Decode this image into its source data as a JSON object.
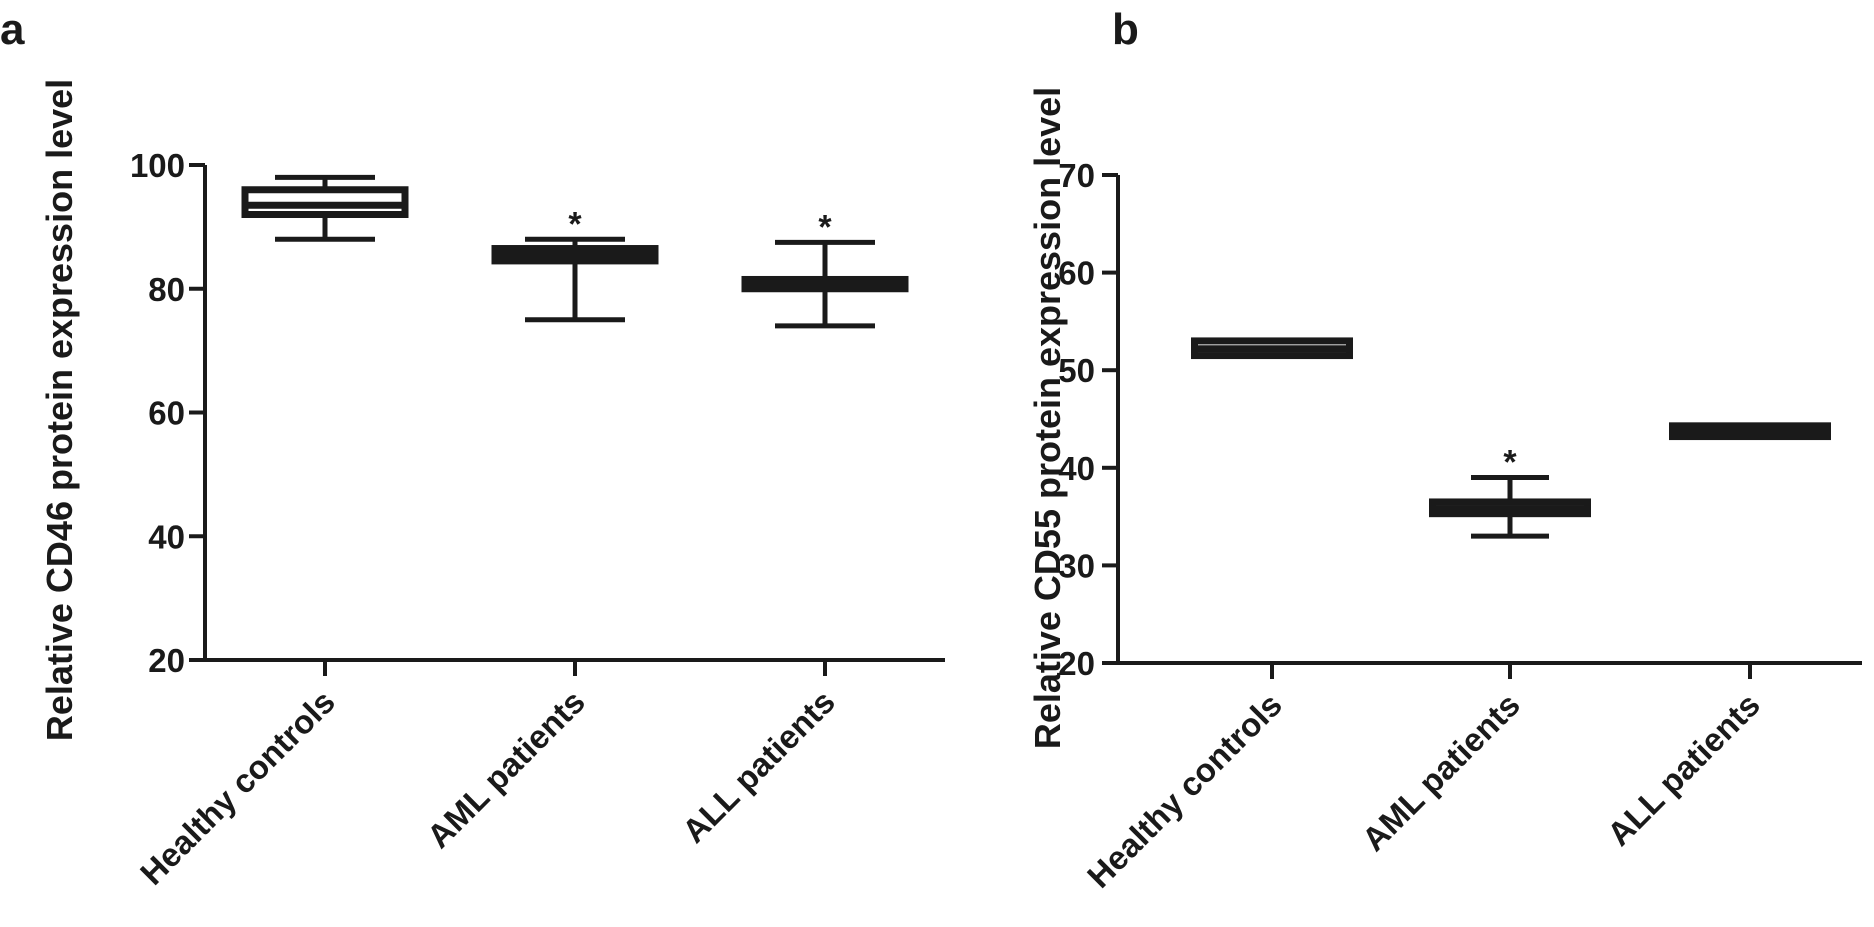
{
  "chart_data": [
    {
      "type": "box",
      "panel_label": "a",
      "ylabel": "Relative CD46 protein expression level",
      "ylim": [
        20,
        100
      ],
      "yticks": [
        20,
        40,
        60,
        80,
        100
      ],
      "categories": [
        "Healthy controls",
        "AML patients",
        "ALL patients"
      ],
      "boxes": [
        {
          "category": "Healthy controls",
          "min": 88,
          "q1": 92,
          "median": 93.5,
          "q3": 96,
          "max": 98,
          "annotation": ""
        },
        {
          "category": "AML patients",
          "min": 75,
          "q1": 84.5,
          "median": 85.5,
          "q3": 86.5,
          "max": 88,
          "annotation": "*"
        },
        {
          "category": "ALL patients",
          "min": 74,
          "q1": 80,
          "median": 80.8,
          "q3": 81.5,
          "max": 87.5,
          "annotation": "*"
        }
      ],
      "grid": false,
      "legend": "none"
    },
    {
      "type": "box",
      "panel_label": "b",
      "ylabel": "Relative CD55 protein expression level",
      "ylim": [
        20,
        70
      ],
      "yticks": [
        20,
        30,
        40,
        50,
        60,
        70
      ],
      "categories": [
        "Healthy controls",
        "AML patients",
        "ALL patients"
      ],
      "boxes": [
        {
          "category": "Healthy controls",
          "min": 51.5,
          "q1": 51.5,
          "median": 52.2,
          "q3": 53,
          "max": 53,
          "annotation": ""
        },
        {
          "category": "AML patients",
          "min": 33,
          "q1": 35.3,
          "median": 35.8,
          "q3": 36.5,
          "max": 39,
          "annotation": "*"
        },
        {
          "category": "ALL patients",
          "min": 43.2,
          "q1": 43.2,
          "median": 43.7,
          "q3": 44.3,
          "max": 44.3,
          "annotation": ""
        }
      ],
      "grid": false,
      "legend": "none"
    }
  ]
}
